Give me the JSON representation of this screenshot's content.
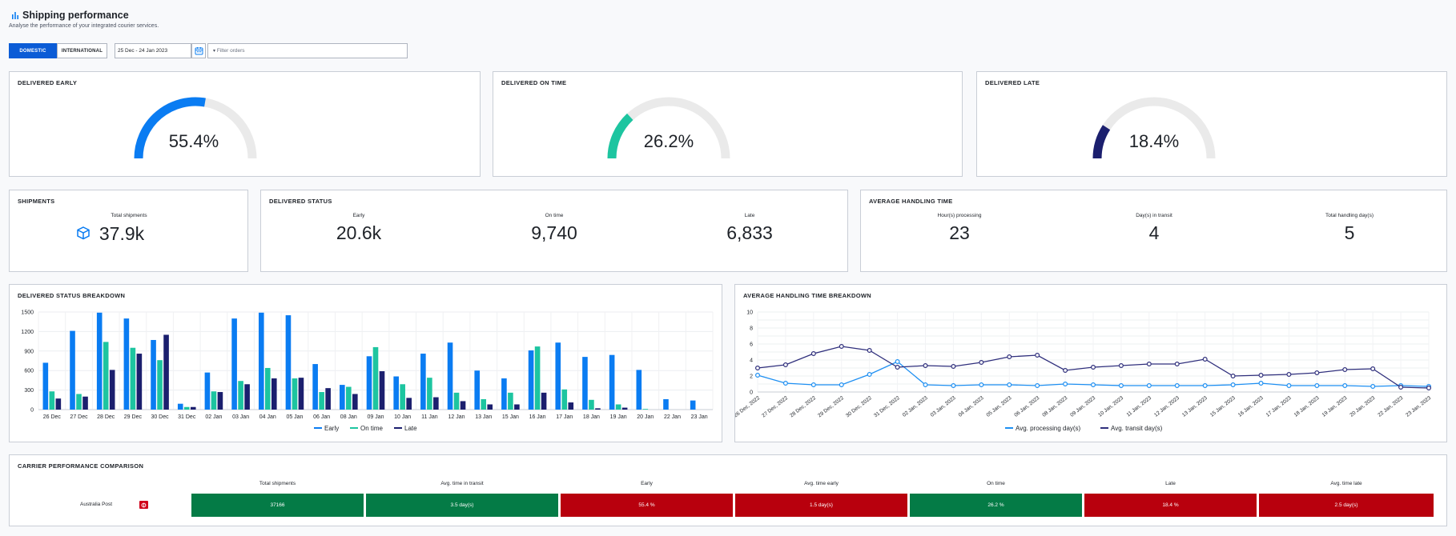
{
  "header": {
    "title": "Shipping performance",
    "subtitle": "Analyse the performance of your integrated courier services.",
    "icon": "bar-chart-icon"
  },
  "toolbar": {
    "tab_domestic": "DOMESTIC",
    "tab_international": "INTERNATIONAL",
    "date_range": "25 Dec - 24 Jan 2023",
    "filter_placeholder": "Filter orders"
  },
  "gauges": {
    "early": {
      "title": "DELIVERED EARLY",
      "value": "55.4%",
      "fraction": 0.554,
      "color": "#0a7cf2"
    },
    "on_time": {
      "title": "DELIVERED ON TIME",
      "value": "26.2%",
      "fraction": 0.262,
      "color": "#1dc5a0"
    },
    "late": {
      "title": "DELIVERED LATE",
      "value": "18.4%",
      "fraction": 0.184,
      "color": "#1b1f6e"
    }
  },
  "shipments": {
    "title": "SHIPMENTS",
    "label": "Total shipments",
    "value": "37.9k"
  },
  "delivered_status": {
    "title": "DELIVERED STATUS",
    "early_label": "Early",
    "early_value": "20.6k",
    "on_time_label": "On time",
    "on_time_value": "9,740",
    "late_label": "Late",
    "late_value": "6,833"
  },
  "handling": {
    "title": "AVERAGE HANDLING TIME",
    "processing_label": "Hour(s) processing",
    "processing_value": "23",
    "transit_label": "Day(s) in transit",
    "transit_value": "4",
    "total_label": "Total handling day(s)",
    "total_value": "5"
  },
  "breakdown_title": "DELIVERED STATUS BREAKDOWN",
  "handling_breakdown_title": "AVERAGE HANDLING TIME BREAKDOWN",
  "chart_data": [
    {
      "type": "bar",
      "title": "DELIVERED STATUS BREAKDOWN",
      "categories": [
        "26 Dec",
        "27 Dec",
        "28 Dec",
        "29 Dec",
        "30 Dec",
        "31 Dec",
        "02 Jan",
        "03 Jan",
        "04 Jan",
        "05 Jan",
        "06 Jan",
        "08 Jan",
        "09 Jan",
        "10 Jan",
        "11 Jan",
        "12 Jan",
        "13 Jan",
        "15 Jan",
        "16 Jan",
        "17 Jan",
        "18 Jan",
        "19 Jan",
        "20 Jan",
        "22 Jan",
        "23 Jan"
      ],
      "series": [
        {
          "name": "Early",
          "color": "#0a7cf2",
          "values": [
            720,
            1210,
            1490,
            1400,
            1070,
            90,
            570,
            1400,
            1490,
            1450,
            700,
            380,
            820,
            510,
            860,
            1030,
            600,
            480,
            910,
            1030,
            810,
            840,
            610,
            160,
            140
          ]
        },
        {
          "name": "On time",
          "color": "#1dc5a0",
          "values": [
            280,
            240,
            1040,
            950,
            760,
            40,
            280,
            440,
            640,
            480,
            270,
            350,
            960,
            390,
            490,
            260,
            160,
            260,
            970,
            310,
            150,
            80,
            10,
            0,
            0
          ]
        },
        {
          "name": "Late",
          "color": "#1b1f6e",
          "values": [
            170,
            200,
            610,
            860,
            1150,
            40,
            270,
            390,
            480,
            490,
            330,
            240,
            590,
            180,
            190,
            130,
            80,
            80,
            260,
            110,
            20,
            30,
            0,
            0,
            0
          ]
        }
      ],
      "ylim": [
        0,
        1500
      ],
      "yticks": [
        "0",
        "300",
        "600",
        "900",
        "1200",
        "1500"
      ]
    },
    {
      "type": "line",
      "title": "AVERAGE HANDLING TIME BREAKDOWN",
      "categories": [
        "26 Dec, 2022",
        "27 Dec, 2022",
        "28 Dec, 2022",
        "29 Dec, 2022",
        "30 Dec, 2022",
        "31 Dec, 2022",
        "02 Jan, 2023",
        "03 Jan, 2023",
        "04 Jan, 2023",
        "05 Jan, 2023",
        "06 Jan, 2023",
        "08 Jan, 2023",
        "09 Jan, 2023",
        "10 Jan, 2023",
        "11 Jan, 2023",
        "12 Jan, 2023",
        "13 Jan, 2023",
        "15 Jan, 2023",
        "16 Jan, 2023",
        "17 Jan, 2023",
        "18 Jan, 2023",
        "19 Jan, 2023",
        "20 Jan, 2023",
        "22 Jan, 2023",
        "23 Jan, 2023"
      ],
      "series": [
        {
          "name": "Avg. processing day(s)",
          "color": "#1e8ff2",
          "values": [
            2.1,
            1.1,
            0.9,
            0.9,
            2.2,
            3.8,
            0.9,
            0.8,
            0.9,
            0.9,
            0.8,
            1.0,
            0.9,
            0.8,
            0.8,
            0.8,
            0.8,
            0.9,
            1.1,
            0.8,
            0.8,
            0.8,
            0.7,
            0.8,
            0.7
          ]
        },
        {
          "name": "Avg. transit day(s)",
          "color": "#2f2f7c",
          "values": [
            3.0,
            3.4,
            4.8,
            5.7,
            5.2,
            3.1,
            3.3,
            3.2,
            3.7,
            4.4,
            4.6,
            2.7,
            3.1,
            3.3,
            3.5,
            3.5,
            4.1,
            2.0,
            2.1,
            2.2,
            2.4,
            2.8,
            2.9,
            0.6,
            0.5
          ]
        }
      ],
      "ylim": [
        0,
        10
      ],
      "yticks": [
        "0",
        "2",
        "4",
        "6",
        "8",
        "10"
      ]
    }
  ],
  "legend": {
    "early": "Early",
    "on_time": "On time",
    "late": "Late",
    "processing": "Avg. processing day(s)",
    "transit": "Avg. transit day(s)"
  },
  "carrier": {
    "title": "CARRIER PERFORMANCE COMPARISON",
    "headers": [
      "Total shipments",
      "Avg. time in transit",
      "Early",
      "Avg. time early",
      "On time",
      "Late",
      "Avg. time late"
    ],
    "name": "Australia Post",
    "cells": [
      "37166",
      "3.5 day(s)",
      "55.4 %",
      "1.5 day(s)",
      "26.2 %",
      "18.4 %",
      "2.5 day(s)"
    ]
  }
}
